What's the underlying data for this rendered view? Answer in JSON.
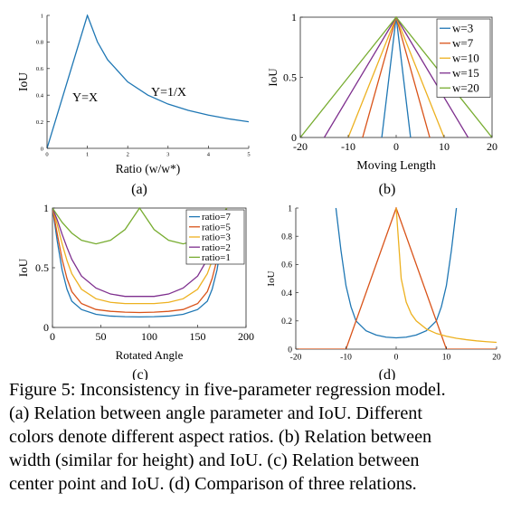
{
  "colors": {
    "blue": "#1f77b4",
    "orange": "#d95319",
    "yellow": "#edb120",
    "purple": "#7e2f8e",
    "green": "#77ac30"
  },
  "chart_data": [
    {
      "id": "a",
      "panel_label": "(a)",
      "type": "line",
      "xlabel": "Ratio (w/w*)",
      "ylabel": "IoU",
      "xlim": [
        0,
        5
      ],
      "ylim": [
        0,
        1
      ],
      "xticks": [
        "0",
        "1",
        "2",
        "3",
        "4",
        "5"
      ],
      "yticks": [
        "0",
        "0.2",
        "0.4",
        "0.6",
        "0.8",
        "1"
      ],
      "annotations": [
        "Y=X",
        "Y=1/X"
      ],
      "series": [
        {
          "color": "#1f77b4",
          "x": [
            0,
            1,
            1.25,
            1.5,
            2,
            2.5,
            3,
            3.5,
            4,
            4.5,
            5
          ],
          "y": [
            0,
            1,
            0.8,
            0.667,
            0.5,
            0.4,
            0.333,
            0.286,
            0.25,
            0.222,
            0.2
          ]
        }
      ]
    },
    {
      "id": "b",
      "panel_label": "(b)",
      "type": "line",
      "xlabel": "Moving Length",
      "ylabel": "IoU",
      "xlim": [
        -20,
        20
      ],
      "ylim": [
        0,
        1
      ],
      "xticks": [
        "-20",
        "-10",
        "0",
        "10",
        "20"
      ],
      "yticks": [
        "0",
        "0.5",
        "1"
      ],
      "legend_position": "top-right",
      "series": [
        {
          "name": "w=3",
          "color": "#1f77b4",
          "x": [
            -3,
            0,
            3
          ],
          "y": [
            0,
            1,
            0
          ]
        },
        {
          "name": "w=7",
          "color": "#d95319",
          "x": [
            -7,
            0,
            7
          ],
          "y": [
            0,
            1,
            0
          ]
        },
        {
          "name": "w=10",
          "color": "#edb120",
          "x": [
            -10,
            0,
            10
          ],
          "y": [
            0,
            1,
            0
          ]
        },
        {
          "name": "w=15",
          "color": "#7e2f8e",
          "x": [
            -15,
            0,
            15
          ],
          "y": [
            0,
            1,
            0
          ]
        },
        {
          "name": "w=20",
          "color": "#77ac30",
          "x": [
            -20,
            0,
            20
          ],
          "y": [
            0,
            1,
            0
          ]
        }
      ]
    },
    {
      "id": "c",
      "panel_label": "(c)",
      "type": "line",
      "xlabel": "Rotated Angle",
      "ylabel": "IoU",
      "xlim": [
        0,
        200
      ],
      "ylim": [
        0,
        1
      ],
      "xticks": [
        "0",
        "50",
        "100",
        "150",
        "200"
      ],
      "yticks": [
        "0",
        "0.5",
        "1"
      ],
      "legend_position": "top-right",
      "series": [
        {
          "name": "ratio=7",
          "color": "#1f77b4",
          "x": [
            0,
            5,
            10,
            15,
            20,
            30,
            45,
            60,
            75,
            90,
            105,
            120,
            135,
            150,
            160,
            165,
            170,
            175,
            180
          ],
          "y": [
            1,
            0.72,
            0.48,
            0.32,
            0.22,
            0.15,
            0.11,
            0.095,
            0.09,
            0.088,
            0.09,
            0.095,
            0.11,
            0.15,
            0.22,
            0.32,
            0.48,
            0.72,
            1
          ]
        },
        {
          "name": "ratio=5",
          "color": "#d95319",
          "x": [
            0,
            5,
            10,
            15,
            20,
            30,
            45,
            60,
            75,
            90,
            105,
            120,
            135,
            150,
            160,
            165,
            170,
            175,
            180
          ],
          "y": [
            1,
            0.78,
            0.57,
            0.41,
            0.3,
            0.2,
            0.15,
            0.135,
            0.128,
            0.125,
            0.128,
            0.135,
            0.15,
            0.2,
            0.3,
            0.41,
            0.57,
            0.78,
            1
          ]
        },
        {
          "name": "ratio=3",
          "color": "#edb120",
          "x": [
            0,
            5,
            10,
            15,
            20,
            30,
            45,
            60,
            75,
            90,
            105,
            120,
            135,
            150,
            160,
            165,
            170,
            175,
            180
          ],
          "y": [
            1,
            0.86,
            0.7,
            0.56,
            0.45,
            0.32,
            0.24,
            0.21,
            0.2,
            0.2,
            0.2,
            0.21,
            0.24,
            0.32,
            0.45,
            0.56,
            0.7,
            0.86,
            1
          ]
        },
        {
          "name": "ratio=2",
          "color": "#7e2f8e",
          "x": [
            0,
            5,
            10,
            15,
            20,
            30,
            45,
            60,
            75,
            90,
            105,
            120,
            135,
            150,
            160,
            165,
            170,
            175,
            180
          ],
          "y": [
            1,
            0.9,
            0.78,
            0.67,
            0.57,
            0.43,
            0.33,
            0.28,
            0.26,
            0.26,
            0.26,
            0.28,
            0.33,
            0.43,
            0.57,
            0.67,
            0.78,
            0.9,
            1
          ]
        },
        {
          "name": "ratio=1",
          "color": "#77ac30",
          "x": [
            0,
            10,
            20,
            30,
            45,
            60,
            75,
            90,
            105,
            120,
            135,
            150,
            160,
            170,
            180
          ],
          "y": [
            1,
            0.88,
            0.79,
            0.73,
            0.7,
            0.73,
            0.82,
            1,
            0.82,
            0.73,
            0.7,
            0.73,
            0.79,
            0.88,
            1
          ]
        }
      ]
    },
    {
      "id": "d",
      "panel_label": "(d)",
      "type": "line",
      "xlabel": "",
      "ylabel": "IoU",
      "xlim": [
        -20,
        20
      ],
      "ylim": [
        0,
        1
      ],
      "xticks": [
        "-20",
        "-10",
        "0",
        "10",
        "20"
      ],
      "yticks": [
        "0",
        "0.2",
        "0.4",
        "0.6",
        "0.8",
        "1"
      ],
      "series": [
        {
          "color": "#1f77b4",
          "x": [
            -12,
            -11,
            -10,
            -9,
            -8,
            -6,
            -4,
            -2,
            0,
            2,
            4,
            6,
            8,
            9,
            10,
            11,
            12
          ],
          "y": [
            1,
            0.7,
            0.45,
            0.3,
            0.2,
            0.13,
            0.1,
            0.085,
            0.08,
            0.085,
            0.1,
            0.13,
            0.2,
            0.3,
            0.45,
            0.7,
            1
          ]
        },
        {
          "color": "#d95319",
          "x": [
            -20,
            -10,
            0,
            10,
            20
          ],
          "y": [
            0,
            0,
            1,
            0,
            0
          ]
        },
        {
          "color": "#edb120",
          "x": [
            0,
            1,
            2,
            3,
            4,
            6,
            8,
            10,
            12,
            14,
            16,
            18,
            20
          ],
          "y": [
            1,
            0.5,
            0.333,
            0.25,
            0.2,
            0.143,
            0.111,
            0.091,
            0.077,
            0.067,
            0.059,
            0.053,
            0.048
          ]
        }
      ]
    }
  ],
  "caption": {
    "line1": "Figure 5: Inconsistency in five-parameter regression model.",
    "line2": "(a) Relation between angle parameter and IoU. Different",
    "line3": "colors denote different aspect ratios.  (b) Relation between",
    "line4": "width (similar for height) and IoU. (c) Relation between",
    "line5": "center point and IoU. (d) Comparison of three relations."
  }
}
